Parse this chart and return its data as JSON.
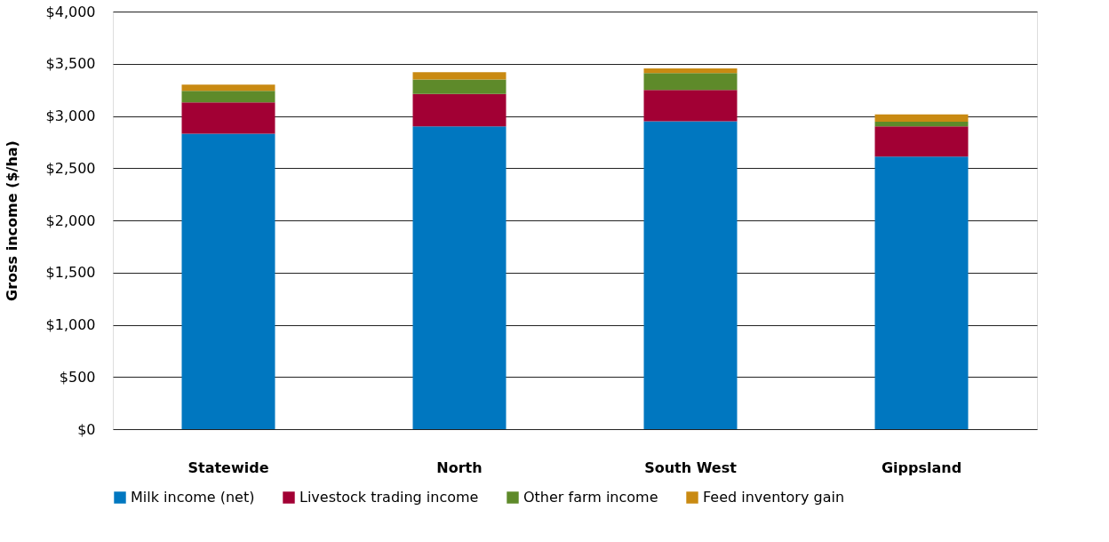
{
  "chart_data": {
    "type": "bar",
    "stacked": true,
    "ylabel": "Gross income ($/ha)",
    "categories": [
      "Statewide",
      "North",
      "South West",
      "Gippsland"
    ],
    "series": [
      {
        "name": "Milk income (net)",
        "color": "#0077c0",
        "values": [
          2830,
          2900,
          2950,
          2610
        ]
      },
      {
        "name": "Livestock trading income",
        "color": "#a20034",
        "values": [
          300,
          310,
          300,
          290
        ]
      },
      {
        "name": "Other farm income",
        "color": "#5e8a2a",
        "values": [
          110,
          140,
          160,
          45
        ]
      },
      {
        "name": "Feed inventory gain",
        "color": "#c98a12",
        "values": [
          60,
          70,
          45,
          70
        ]
      }
    ],
    "ylim": [
      0,
      4000
    ],
    "yticks": [
      {
        "value": 0,
        "label": "$0"
      },
      {
        "value": 500,
        "label": "$500"
      },
      {
        "value": 1000,
        "label": "$1,000"
      },
      {
        "value": 1500,
        "label": "$1,500"
      },
      {
        "value": 2000,
        "label": "$2,000"
      },
      {
        "value": 2500,
        "label": "$2,500"
      },
      {
        "value": 3000,
        "label": "$3,000"
      },
      {
        "value": 3500,
        "label": "$3,500"
      },
      {
        "value": 4000,
        "label": "$4,000"
      }
    ],
    "grid": "y",
    "legend": "bottom"
  }
}
